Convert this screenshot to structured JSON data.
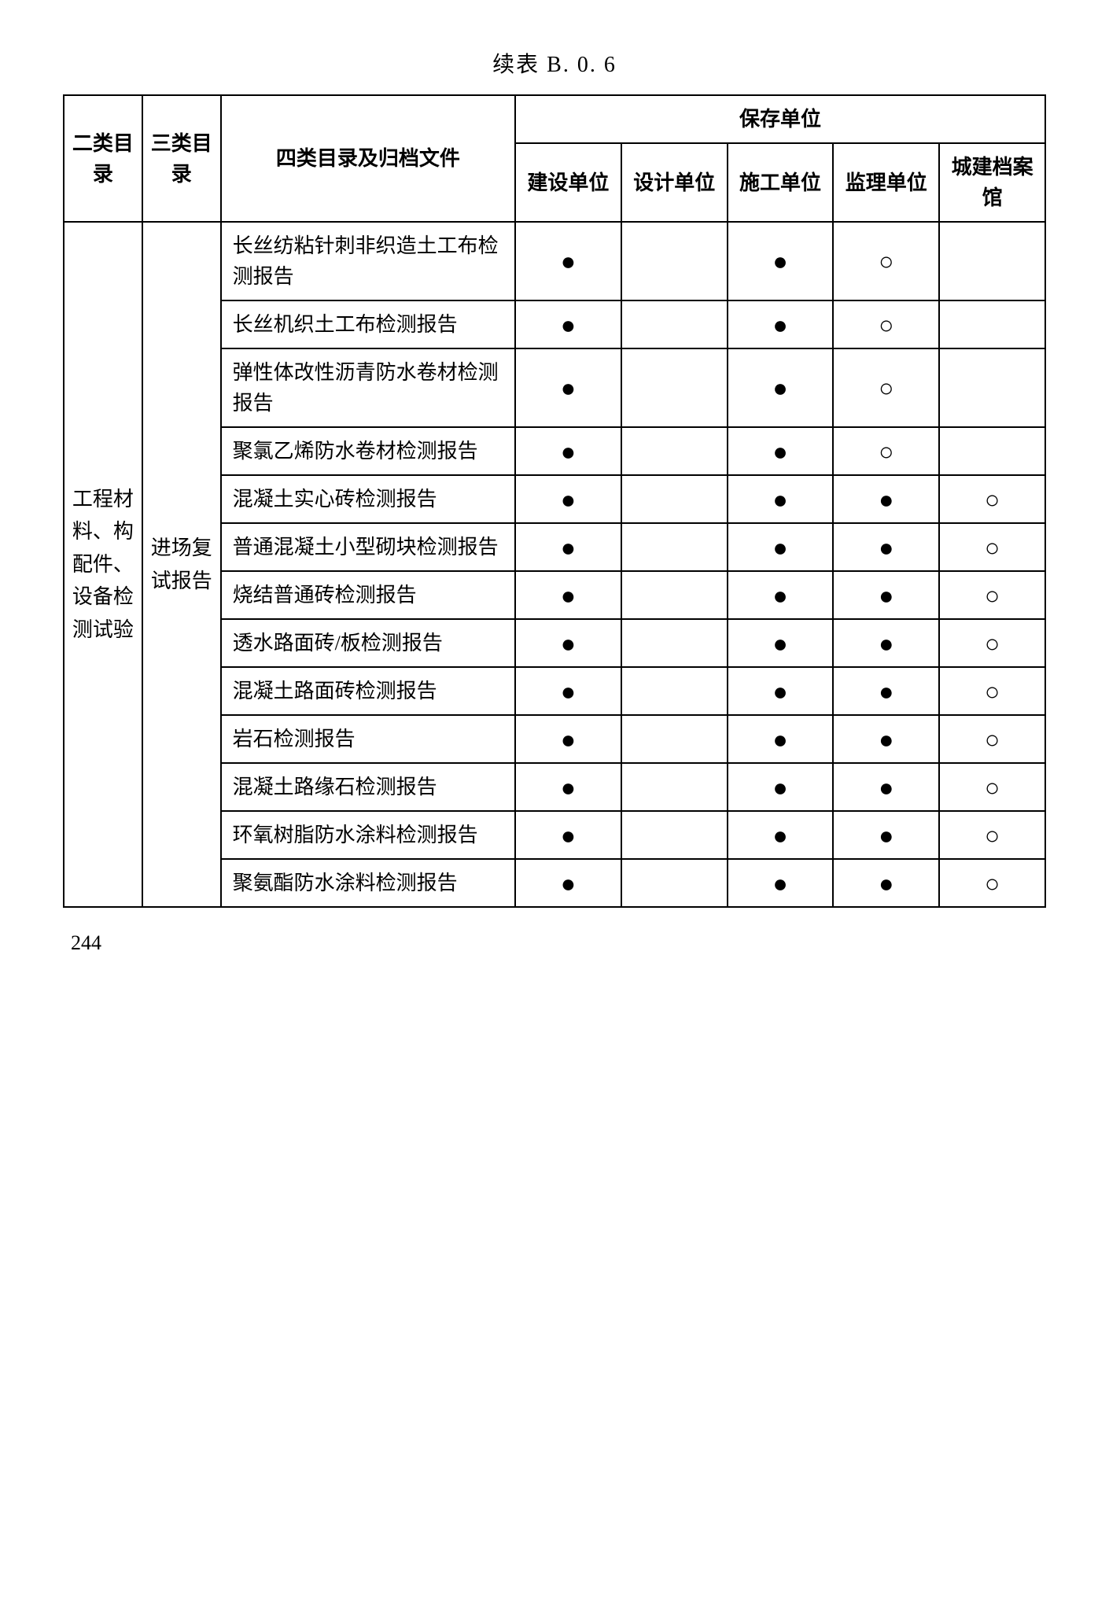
{
  "title": "续表 B. 0. 6",
  "pageNumber": "244",
  "marks": {
    "filled": "●",
    "hollow": "○",
    "empty": ""
  },
  "headers": {
    "cat2": "二类目录",
    "cat3": "三类目录",
    "item": "四类目录及归档文件",
    "storageGroup": "保存单位",
    "units": {
      "construction": "建设单位",
      "design": "设计单位",
      "builder": "施工单位",
      "supervisor": "监理单位",
      "archive": "城建档案馆"
    }
  },
  "rowSpanLabels": {
    "cat2": "工程材料、构配件、设备检测试验",
    "cat3": "进场复试报告"
  },
  "rows": [
    {
      "item": "长丝纺粘针刺非织造土工布检测报告",
      "cells": [
        "filled",
        "empty",
        "filled",
        "hollow",
        "empty"
      ]
    },
    {
      "item": "长丝机织土工布检测报告",
      "cells": [
        "filled",
        "empty",
        "filled",
        "hollow",
        "empty"
      ]
    },
    {
      "item": "弹性体改性沥青防水卷材检测报告",
      "cells": [
        "filled",
        "empty",
        "filled",
        "hollow",
        "empty"
      ]
    },
    {
      "item": "聚氯乙烯防水卷材检测报告",
      "cells": [
        "filled",
        "empty",
        "filled",
        "hollow",
        "empty"
      ]
    },
    {
      "item": "混凝土实心砖检测报告",
      "cells": [
        "filled",
        "empty",
        "filled",
        "filled",
        "hollow"
      ]
    },
    {
      "item": "普通混凝土小型砌块检测报告",
      "cells": [
        "filled",
        "empty",
        "filled",
        "filled",
        "hollow"
      ]
    },
    {
      "item": "烧结普通砖检测报告",
      "cells": [
        "filled",
        "empty",
        "filled",
        "filled",
        "hollow"
      ]
    },
    {
      "item": "透水路面砖/板检测报告",
      "cells": [
        "filled",
        "empty",
        "filled",
        "filled",
        "hollow"
      ]
    },
    {
      "item": "混凝土路面砖检测报告",
      "cells": [
        "filled",
        "empty",
        "filled",
        "filled",
        "hollow"
      ]
    },
    {
      "item": "岩石检测报告",
      "cells": [
        "filled",
        "empty",
        "filled",
        "filled",
        "hollow"
      ]
    },
    {
      "item": "混凝土路缘石检测报告",
      "cells": [
        "filled",
        "empty",
        "filled",
        "filled",
        "hollow"
      ]
    },
    {
      "item": "环氧树脂防水涂料检测报告",
      "cells": [
        "filled",
        "empty",
        "filled",
        "filled",
        "hollow"
      ]
    },
    {
      "item": "聚氨酯防水涂料检测报告",
      "cells": [
        "filled",
        "empty",
        "filled",
        "filled",
        "hollow"
      ]
    }
  ]
}
